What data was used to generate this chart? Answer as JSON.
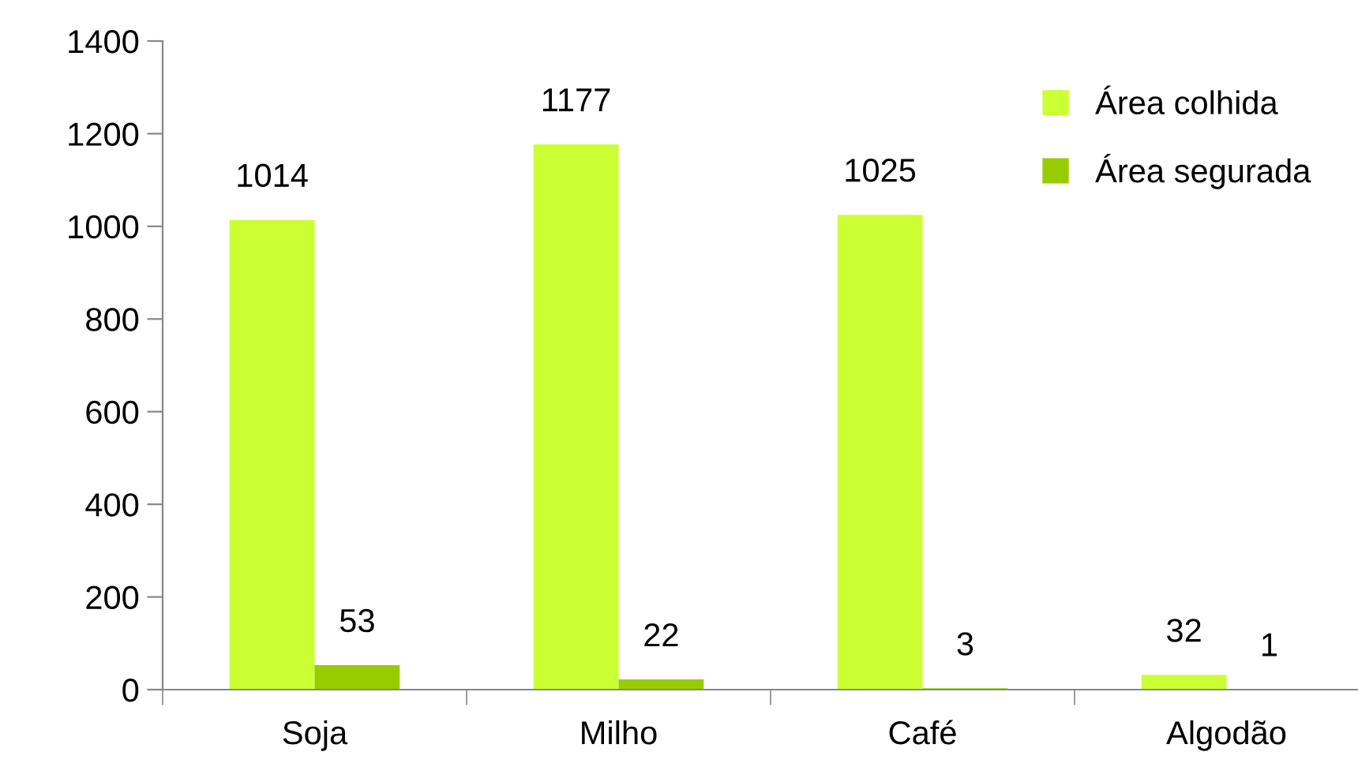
{
  "chart_data": {
    "type": "bar",
    "categories": [
      "Soja",
      "Milho",
      "Café",
      "Algodão"
    ],
    "series": [
      {
        "name": "Área colhida",
        "color": "#ccff33",
        "values": [
          1014,
          1177,
          1025,
          32
        ]
      },
      {
        "name": "Área segurada",
        "color": "#99cc00",
        "values": [
          53,
          22,
          3,
          1
        ]
      }
    ],
    "ylim": [
      0,
      1400
    ],
    "yticks": [
      0,
      200,
      400,
      600,
      800,
      1000,
      1200,
      1400
    ],
    "data_labels": true,
    "legend": "top right",
    "grid": false
  }
}
